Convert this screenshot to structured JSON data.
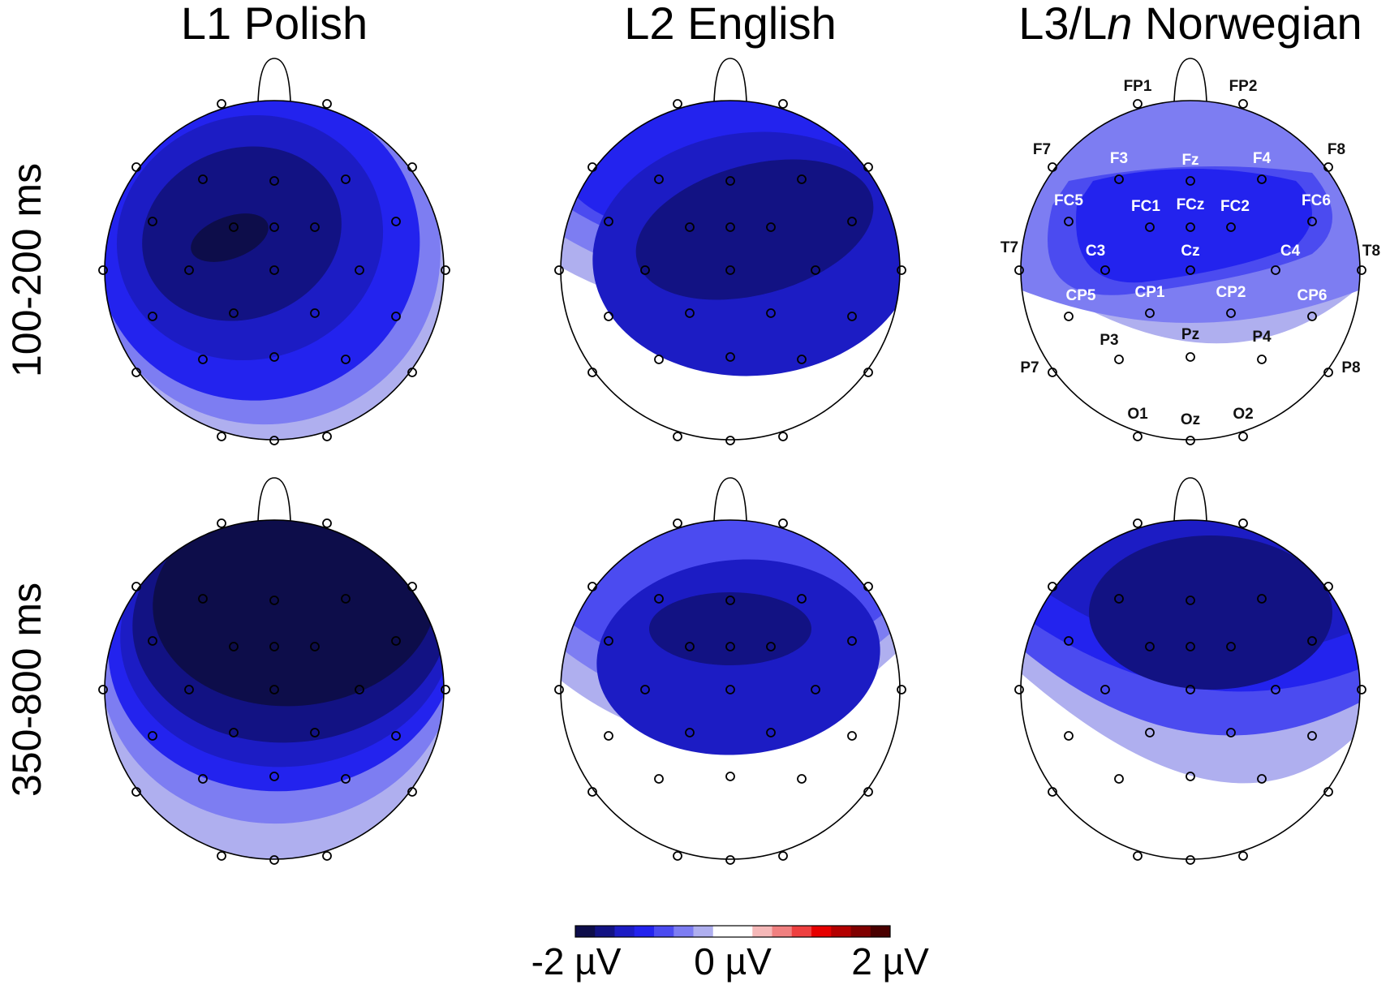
{
  "chart_data": {
    "type": "heatmap",
    "columns": [
      {
        "title_prefix": "L1 Polish",
        "title_italic": "",
        "title_suffix": ""
      },
      {
        "title_prefix": "L2 English",
        "title_italic": "",
        "title_suffix": ""
      },
      {
        "title_prefix": "L3/L",
        "title_italic": "n",
        "title_suffix": " Norwegian"
      }
    ],
    "rows": [
      "100-200 ms",
      "350-800 ms"
    ],
    "colorbar": {
      "min_label": "-2 µV",
      "mid_label": "0 µV",
      "max_label": "2 µV",
      "range": [
        -2,
        2
      ],
      "colors": [
        "#0d0d4a",
        "#121283",
        "#1c1cc4",
        "#2323ee",
        "#4b4bf0",
        "#7d7df2",
        "#afafef",
        "#ffffff",
        "#ffffff",
        "#f5b8b8",
        "#f08080",
        "#ee4040",
        "#e60000",
        "#b30000",
        "#800000",
        "#4a0000"
      ]
    },
    "electrodes": [
      {
        "name": "FP1",
        "label_color": "dark"
      },
      {
        "name": "FP2",
        "label_color": "dark"
      },
      {
        "name": "F7",
        "label_color": "dark"
      },
      {
        "name": "F3",
        "label_color": "light"
      },
      {
        "name": "Fz",
        "label_color": "light"
      },
      {
        "name": "F4",
        "label_color": "light"
      },
      {
        "name": "F8",
        "label_color": "dark"
      },
      {
        "name": "FC5",
        "label_color": "light"
      },
      {
        "name": "FC1",
        "label_color": "light"
      },
      {
        "name": "FCz",
        "label_color": "light"
      },
      {
        "name": "FC2",
        "label_color": "light"
      },
      {
        "name": "FC6",
        "label_color": "light"
      },
      {
        "name": "T7",
        "label_color": "dark"
      },
      {
        "name": "C3",
        "label_color": "light"
      },
      {
        "name": "Cz",
        "label_color": "light"
      },
      {
        "name": "C4",
        "label_color": "light"
      },
      {
        "name": "T8",
        "label_color": "dark"
      },
      {
        "name": "CP5",
        "label_color": "light"
      },
      {
        "name": "CP1",
        "label_color": "light"
      },
      {
        "name": "CP2",
        "label_color": "light"
      },
      {
        "name": "CP6",
        "label_color": "light"
      },
      {
        "name": "P7",
        "label_color": "dark"
      },
      {
        "name": "P3",
        "label_color": "dark"
      },
      {
        "name": "Pz",
        "label_color": "dark"
      },
      {
        "name": "P4",
        "label_color": "dark"
      },
      {
        "name": "P8",
        "label_color": "dark"
      },
      {
        "name": "O1",
        "label_color": "dark"
      },
      {
        "name": "Oz",
        "label_color": "dark"
      },
      {
        "name": "O2",
        "label_color": "dark"
      }
    ],
    "labeled_map": {
      "row": 0,
      "column": 2
    },
    "maps": [
      {
        "row": 0,
        "column": 0,
        "amplitude_uv": -1.25,
        "peak_uv": -1.9,
        "description_unit": "µV"
      },
      {
        "row": 0,
        "column": 1,
        "amplitude_uv": -1.0,
        "peak_uv": -1.7,
        "description_unit": "µV"
      },
      {
        "row": 0,
        "column": 2,
        "amplitude_uv": -0.6,
        "peak_uv": -1.3,
        "description_unit": "µV"
      },
      {
        "row": 1,
        "column": 0,
        "amplitude_uv": -1.5,
        "peak_uv": -2.0,
        "description_unit": "µV"
      },
      {
        "row": 1,
        "column": 1,
        "amplitude_uv": -1.0,
        "peak_uv": -1.7,
        "description_unit": "µV"
      },
      {
        "row": 1,
        "column": 2,
        "amplitude_uv": -1.0,
        "peak_uv": -1.7,
        "description_unit": "µV"
      }
    ]
  }
}
